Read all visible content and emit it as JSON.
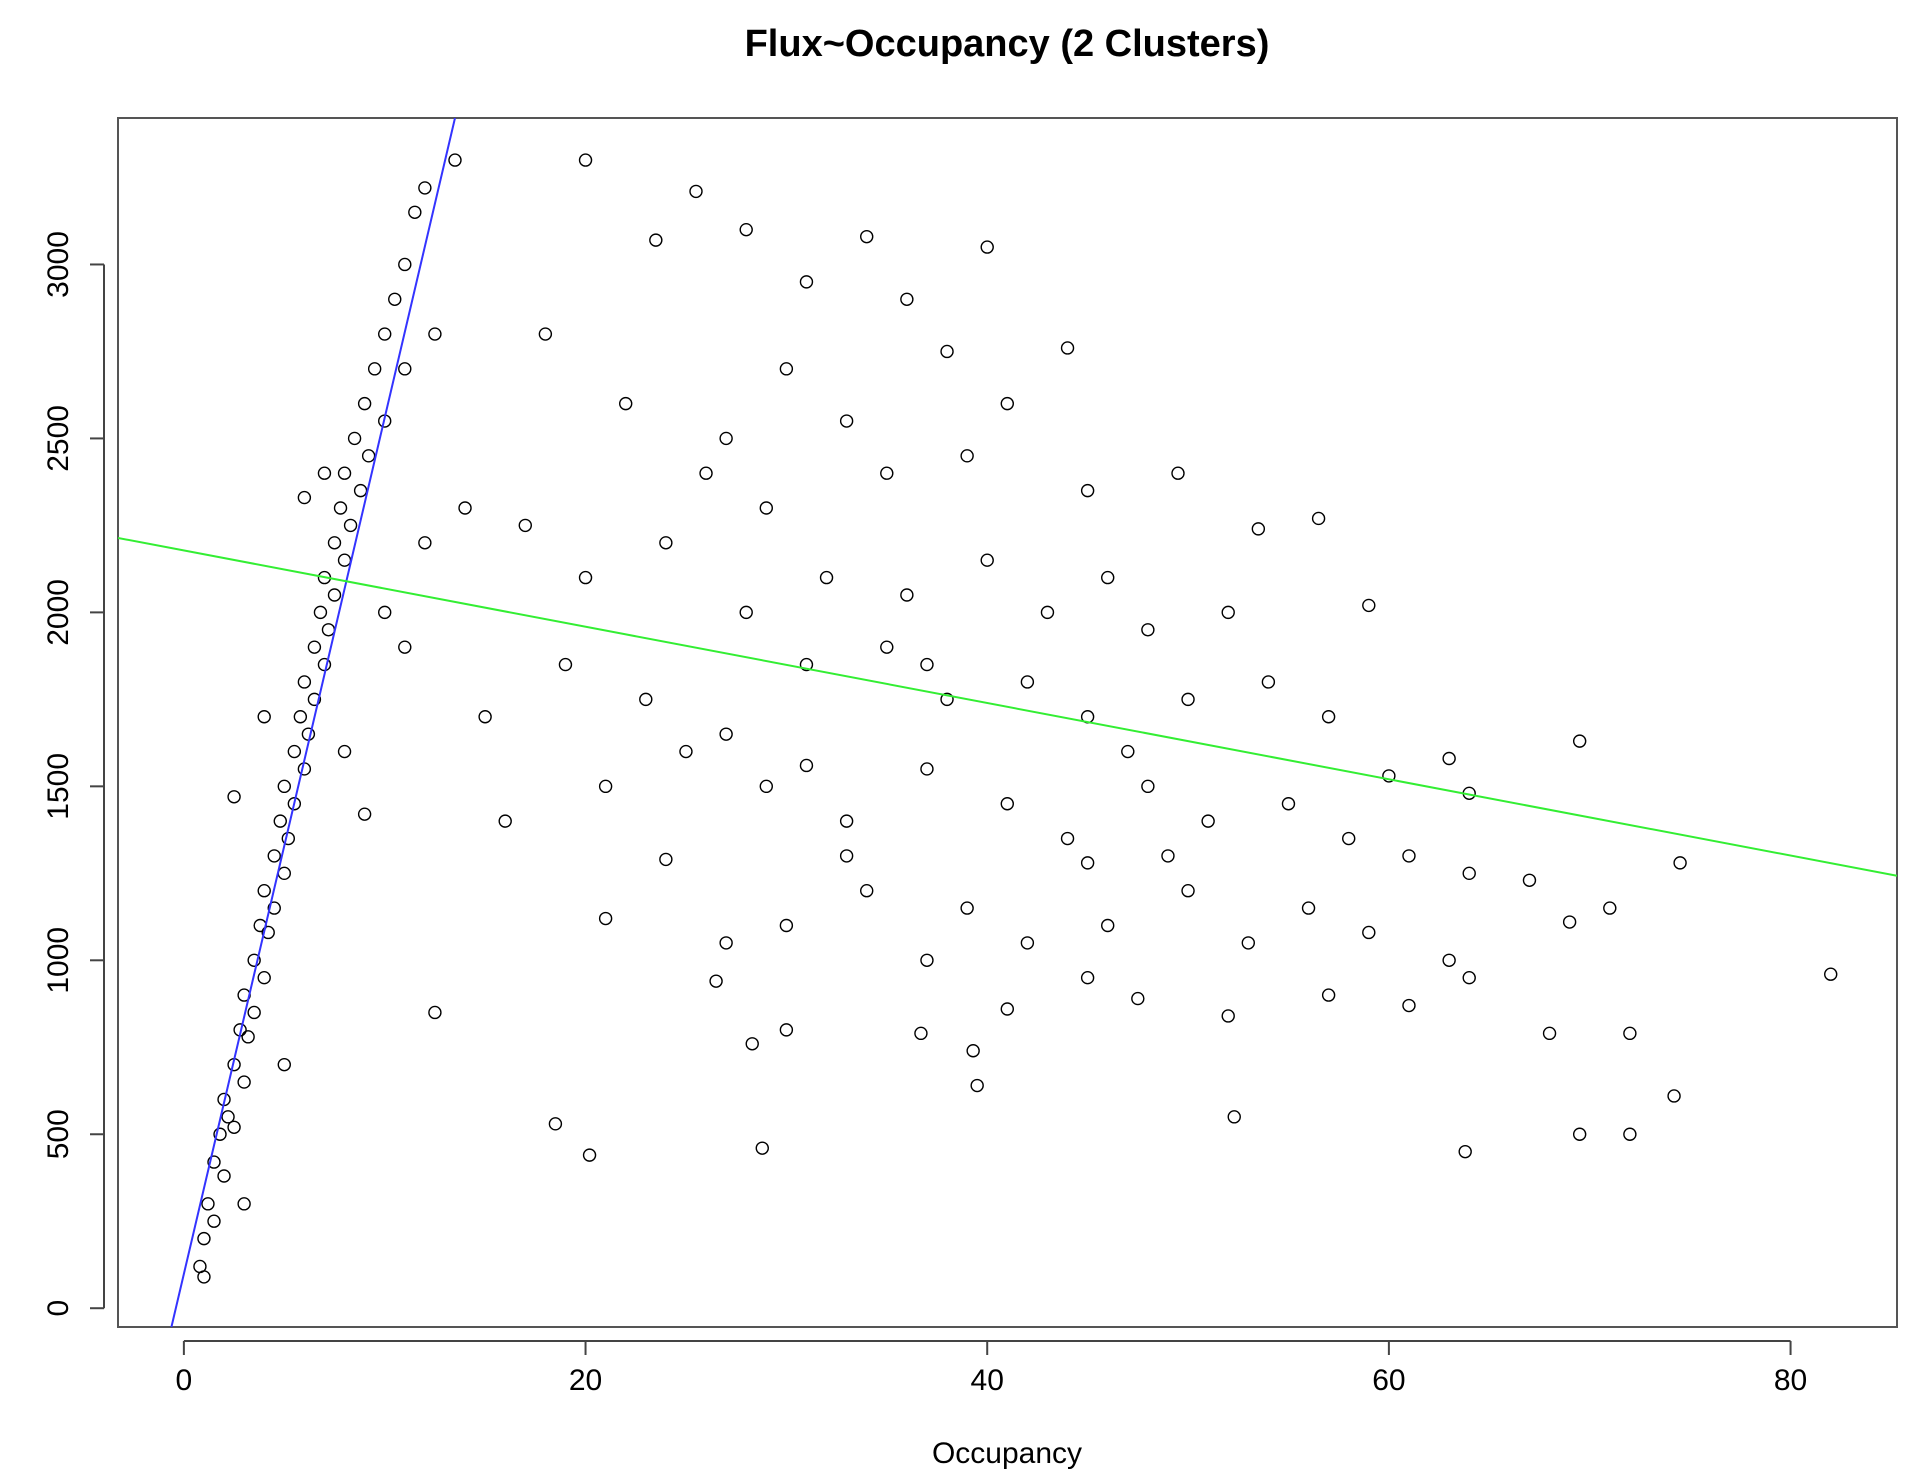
{
  "chart_data": {
    "type": "scatter",
    "title": "Flux~Occupancy (2 Clusters)",
    "x_label": "Occupancy",
    "xlim": [
      -3.28,
      85.3
    ],
    "ylim": [
      -54,
      3421
    ],
    "xticks": [
      0,
      20,
      40,
      60,
      80
    ],
    "yticks": [
      0,
      500,
      1000,
      1500,
      2000,
      2500,
      3000
    ],
    "color": "#000000",
    "x": [
      0.8,
      1,
      1,
      1.2,
      1.5,
      1.5,
      1.8,
      2,
      2,
      2.2,
      2.5,
      2.5,
      2.8,
      3,
      3,
      3.2,
      3.5,
      3.5,
      3.8,
      4,
      4,
      4.2,
      4.5,
      4.5,
      4.8,
      5,
      5,
      5.2,
      5.5,
      5.5,
      5.8,
      6,
      6,
      6.2,
      6.5,
      6.5,
      6.8,
      7,
      7,
      7.2,
      7.5,
      7.5,
      7.8,
      8,
      8,
      8.3,
      8.5,
      8.8,
      9,
      9.2,
      9.5,
      10,
      10,
      10.5,
      11,
      11,
      11.5,
      12,
      13.5,
      12.5,
      2.5,
      3,
      4,
      6,
      7,
      9,
      12.5,
      10,
      8,
      5,
      11,
      12,
      14,
      20,
      25.5,
      34,
      40,
      23.5,
      28,
      36,
      31,
      18,
      22,
      27,
      30,
      33,
      38,
      44,
      41,
      26,
      29,
      35,
      39,
      45,
      49.5,
      56.5,
      53.5,
      17,
      20,
      24,
      28,
      32,
      36,
      40,
      43,
      46,
      48,
      52,
      59,
      15,
      19,
      23,
      27,
      31,
      35,
      38,
      42,
      45,
      47,
      50,
      54,
      57,
      60,
      63,
      64,
      16,
      21,
      25,
      29,
      33,
      37,
      41,
      44,
      48,
      51,
      55,
      58,
      61,
      64,
      69.5,
      74.5,
      67,
      21,
      24,
      27,
      30,
      34,
      39,
      42,
      46,
      50,
      53,
      56,
      59,
      63,
      69,
      71,
      82,
      26.5,
      30,
      37,
      41,
      45,
      47.5,
      52,
      57,
      61,
      64,
      68,
      72,
      18.5,
      20.2,
      28.8,
      39.5,
      39.3,
      52.3,
      63.8,
      69.5,
      72,
      74.2,
      28.3,
      36.7,
      45,
      33,
      49,
      31,
      37
    ],
    "values": [
      120,
      200,
      90,
      300,
      250,
      420,
      500,
      380,
      600,
      550,
      700,
      520,
      800,
      650,
      900,
      780,
      1000,
      850,
      1100,
      950,
      1200,
      1080,
      1300,
      1150,
      1400,
      1250,
      1500,
      1350,
      1600,
      1450,
      1700,
      1550,
      1800,
      1650,
      1900,
      1750,
      2000,
      1850,
      2100,
      1950,
      2200,
      2050,
      2300,
      2150,
      2400,
      2250,
      2500,
      2350,
      2600,
      2450,
      2700,
      2550,
      2800,
      2900,
      2700,
      3000,
      3150,
      3220,
      3300,
      2800,
      1470,
      300,
      1700,
      2330,
      2400,
      1420,
      850,
      2000,
      1600,
      700,
      1900,
      2200,
      2300,
      3300,
      3210,
      3080,
      3050,
      3070,
      3100,
      2900,
      2950,
      2800,
      2600,
      2500,
      2700,
      2550,
      2750,
      2760,
      2600,
      2400,
      2300,
      2400,
      2450,
      2350,
      2400,
      2270,
      2240,
      2250,
      2100,
      2200,
      2000,
      2100,
      2050,
      2150,
      2000,
      2100,
      1950,
      2000,
      2020,
      1700,
      1850,
      1750,
      1650,
      1850,
      1900,
      1750,
      1800,
      1700,
      1600,
      1750,
      1800,
      1700,
      1530,
      1580,
      1480,
      1400,
      1500,
      1600,
      1500,
      1400,
      1550,
      1450,
      1350,
      1500,
      1400,
      1450,
      1350,
      1300,
      1250,
      1630,
      1280,
      1230,
      1120,
      1290,
      1050,
      1100,
      1200,
      1150,
      1050,
      1100,
      1200,
      1050,
      1150,
      1080,
      1000,
      1110,
      1150,
      960,
      940,
      800,
      1000,
      860,
      950,
      890,
      840,
      900,
      870,
      950,
      790,
      790,
      530,
      440,
      460,
      640,
      740,
      550,
      450,
      500,
      500,
      610,
      760,
      790,
      1280,
      1300,
      1300,
      1560,
      1850
    ],
    "fit_lines": [
      {
        "color": "#3333ff",
        "x": [
          -0.62,
          13.5
        ],
        "values": [
          -54,
          3421
        ]
      },
      {
        "color": "#33ee33",
        "x": [
          -3.28,
          85.3
        ],
        "values": [
          2214,
          1243
        ]
      }
    ]
  }
}
